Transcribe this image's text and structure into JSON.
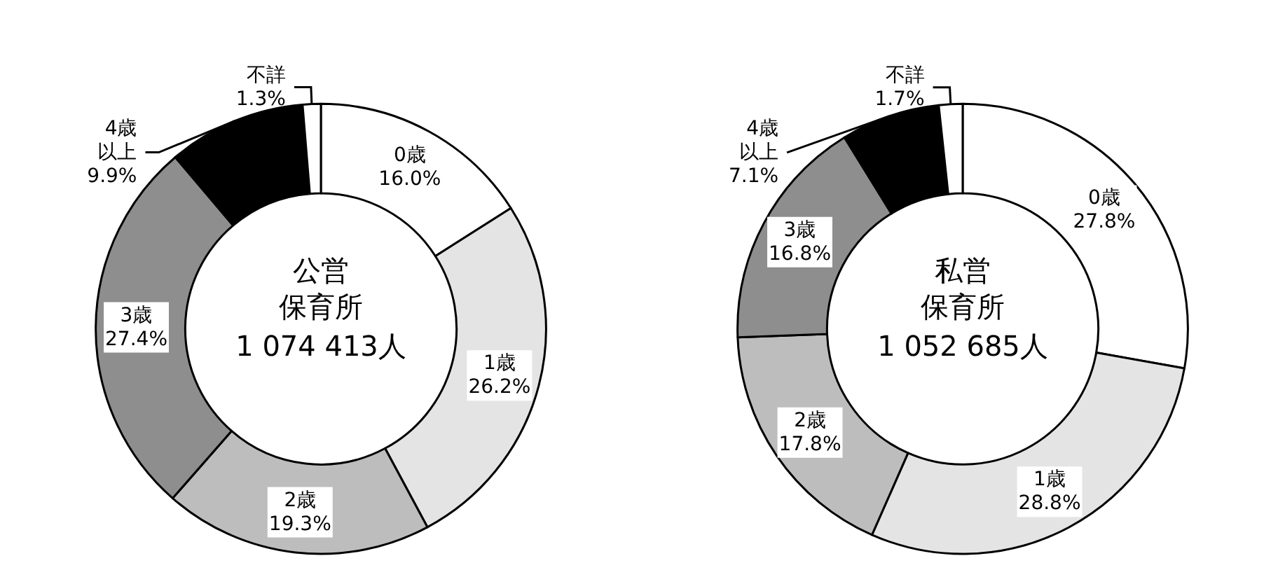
{
  "chart_data": [
    {
      "type": "donut",
      "title": "公営保育所",
      "subtitle": "1 074 413人",
      "categories": [
        "0歳",
        "1歳",
        "2歳",
        "3歳",
        "4歳以上",
        "不詳"
      ],
      "values": [
        16.0,
        26.2,
        19.3,
        27.4,
        9.9,
        1.3
      ],
      "value_labels": [
        "16.0%",
        "26.2%",
        "19.3%",
        "27.4%",
        "9.9%",
        "1.3%"
      ],
      "colors": [
        "#ffffff",
        "#e4e4e4",
        "#bdbdbd",
        "#8e8e8e",
        "#000000",
        "#ffffff"
      ]
    },
    {
      "type": "donut",
      "title": "私営保育所",
      "subtitle": "1 052 685人",
      "categories": [
        "0歳",
        "1歳",
        "2歳",
        "3歳",
        "4歳以上",
        "不詳"
      ],
      "values": [
        27.8,
        28.8,
        17.8,
        16.8,
        7.1,
        1.7
      ],
      "value_labels": [
        "27.8%",
        "28.8%",
        "17.8%",
        "16.8%",
        "7.1%",
        "1.7%"
      ],
      "colors": [
        "#ffffff",
        "#e4e4e4",
        "#bdbdbd",
        "#8e8e8e",
        "#000000",
        "#ffffff"
      ]
    }
  ]
}
